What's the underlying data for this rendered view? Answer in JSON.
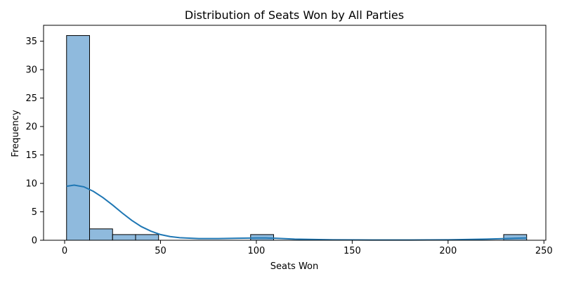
{
  "chart_data": {
    "type": "bar",
    "title": "Distribution of Seats Won by All Parties",
    "xlabel": "Seats Won",
    "ylabel": "Frequency",
    "xlim": [
      -11,
      251
    ],
    "ylim": [
      0,
      37.8
    ],
    "xticks": [
      0,
      50,
      100,
      150,
      200,
      250
    ],
    "yticks": [
      0,
      5,
      10,
      15,
      20,
      25,
      30,
      35
    ],
    "bins": [
      {
        "start": 1,
        "end": 13,
        "count": 36
      },
      {
        "start": 13,
        "end": 25,
        "count": 2
      },
      {
        "start": 25,
        "end": 37,
        "count": 1
      },
      {
        "start": 37,
        "end": 49,
        "count": 1
      },
      {
        "start": 49,
        "end": 61,
        "count": 0
      },
      {
        "start": 61,
        "end": 73,
        "count": 0
      },
      {
        "start": 73,
        "end": 85,
        "count": 0
      },
      {
        "start": 85,
        "end": 97,
        "count": 0
      },
      {
        "start": 97,
        "end": 109,
        "count": 1
      },
      {
        "start": 109,
        "end": 121,
        "count": 0
      },
      {
        "start": 121,
        "end": 133,
        "count": 0
      },
      {
        "start": 133,
        "end": 145,
        "count": 0
      },
      {
        "start": 145,
        "end": 157,
        "count": 0
      },
      {
        "start": 157,
        "end": 169,
        "count": 0
      },
      {
        "start": 169,
        "end": 181,
        "count": 0
      },
      {
        "start": 181,
        "end": 193,
        "count": 0
      },
      {
        "start": 193,
        "end": 205,
        "count": 0
      },
      {
        "start": 205,
        "end": 217,
        "count": 0
      },
      {
        "start": 217,
        "end": 229,
        "count": 0
      },
      {
        "start": 229,
        "end": 241,
        "count": 1
      }
    ],
    "kde": {
      "x": [
        1,
        5,
        10,
        15,
        20,
        25,
        30,
        35,
        40,
        45,
        50,
        55,
        60,
        70,
        80,
        90,
        100,
        105,
        110,
        120,
        140,
        160,
        180,
        200,
        220,
        230,
        235,
        241
      ],
      "y": [
        9.5,
        9.7,
        9.4,
        8.6,
        7.5,
        6.2,
        4.8,
        3.5,
        2.4,
        1.6,
        1.0,
        0.65,
        0.45,
        0.3,
        0.3,
        0.35,
        0.4,
        0.4,
        0.35,
        0.2,
        0.08,
        0.05,
        0.05,
        0.08,
        0.2,
        0.3,
        0.35,
        0.4
      ]
    },
    "grid": false,
    "colors": {
      "bar_fill": "#8fbadd",
      "bar_edge": "#000000",
      "kde_line": "#1f77b4"
    }
  }
}
